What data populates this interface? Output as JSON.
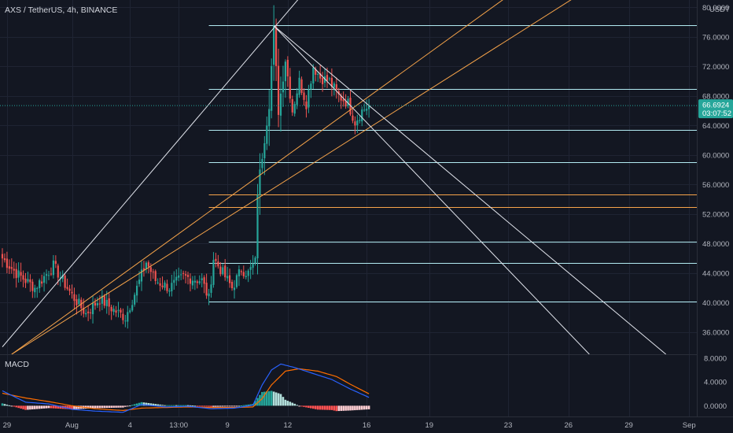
{
  "chart_data": {
    "type": "candlestick",
    "title": "AXS / TetherUS, 4h, BINANCE",
    "currency_label": "USDT",
    "price_axis": {
      "ylim": [
        33.0,
        81.0
      ],
      "ticks": [
        "80.0000",
        "76.0000",
        "72.0000",
        "68.0000",
        "64.0000",
        "60.0000",
        "56.0000",
        "52.0000",
        "48.0000",
        "44.0000",
        "40.0000",
        "36.0000"
      ]
    },
    "last_price": {
      "value": 66.6924,
      "label": "66.6924",
      "countdown": "03:07:52",
      "color": "#26a69a"
    },
    "time_axis": {
      "candle_count": 159,
      "ticks": [
        {
          "index": 2,
          "label": "29"
        },
        {
          "index": 30,
          "label": "Aug"
        },
        {
          "index": 55,
          "label": "4"
        },
        {
          "index": 76,
          "label": "13:00"
        },
        {
          "index": 97,
          "label": "9"
        },
        {
          "index": 123,
          "label": "12"
        },
        {
          "index": 157,
          "label": "16"
        },
        {
          "index": 184,
          "label": "19"
        },
        {
          "index": 218,
          "label": "23"
        },
        {
          "index": 244,
          "label": "26"
        },
        {
          "index": 270,
          "label": "29"
        },
        {
          "index": 296,
          "label": "Sep"
        }
      ]
    },
    "anchors": [
      {
        "i": 0,
        "p": 46.0
      },
      {
        "i": 6,
        "p": 44.0
      },
      {
        "i": 14,
        "p": 42.0
      },
      {
        "i": 22,
        "p": 45.0
      },
      {
        "i": 30,
        "p": 41.0
      },
      {
        "i": 36,
        "p": 38.5
      },
      {
        "i": 42,
        "p": 40.5
      },
      {
        "i": 48,
        "p": 39.0
      },
      {
        "i": 53,
        "p": 38.0
      },
      {
        "i": 58,
        "p": 42.0
      },
      {
        "i": 62,
        "p": 45.5
      },
      {
        "i": 66,
        "p": 43.0
      },
      {
        "i": 72,
        "p": 42.0
      },
      {
        "i": 78,
        "p": 43.5
      },
      {
        "i": 86,
        "p": 43.0
      },
      {
        "i": 89,
        "p": 40.5
      },
      {
        "i": 91,
        "p": 46.0
      },
      {
        "i": 95,
        "p": 44.0
      },
      {
        "i": 99,
        "p": 42.0
      },
      {
        "i": 103,
        "p": 44.5
      },
      {
        "i": 106,
        "p": 44.0
      },
      {
        "i": 109,
        "p": 45.5
      },
      {
        "i": 110,
        "p": 55.0
      },
      {
        "i": 112,
        "p": 60.0
      },
      {
        "i": 115,
        "p": 67.0
      },
      {
        "i": 117,
        "p": 77.0
      },
      {
        "i": 119,
        "p": 66.0
      },
      {
        "i": 122,
        "p": 73.0
      },
      {
        "i": 125,
        "p": 66.0
      },
      {
        "i": 128,
        "p": 70.0
      },
      {
        "i": 131,
        "p": 67.0
      },
      {
        "i": 134,
        "p": 72.0
      },
      {
        "i": 137,
        "p": 70.5
      },
      {
        "i": 141,
        "p": 70.0
      },
      {
        "i": 145,
        "p": 68.0
      },
      {
        "i": 149,
        "p": 67.0
      },
      {
        "i": 152,
        "p": 64.5
      },
      {
        "i": 155,
        "p": 66.0
      },
      {
        "i": 158,
        "p": 66.7
      }
    ],
    "horizontal_levels": [
      {
        "price": 77.6,
        "color": "#b2ebf2",
        "from_index": 89
      },
      {
        "price": 69.0,
        "color": "#b2ebf2",
        "from_index": 89
      },
      {
        "price": 63.4,
        "color": "#b2ebf2",
        "from_index": 89
      },
      {
        "price": 59.0,
        "color": "#b2ebf2",
        "from_index": 89
      },
      {
        "price": 54.6,
        "color": "#f7a44a",
        "from_index": 89
      },
      {
        "price": 53.0,
        "color": "#f7a44a",
        "from_index": 89
      },
      {
        "price": 48.2,
        "color": "#b2ebf2",
        "from_index": 89
      },
      {
        "price": 45.4,
        "color": "#b2ebf2",
        "from_index": 89
      },
      {
        "price": 40.1,
        "color": "#b2ebf2",
        "from_index": 89
      }
    ],
    "trend_lines": [
      {
        "x1": 0,
        "y1": 34.0,
        "x2": 130,
        "y2": 82.0,
        "color": "#e0e3eb"
      },
      {
        "x1": 4,
        "y1": 33.0,
        "x2": 220,
        "y2": 82.0,
        "color": "#f7a44a"
      },
      {
        "x1": 4,
        "y1": 33.0,
        "x2": 250,
        "y2": 82.0,
        "color": "#f7a44a"
      },
      {
        "x1": 117,
        "y1": 77.5,
        "x2": 253,
        "y2": 33.0,
        "color": "#e0e3eb"
      },
      {
        "x1": 117,
        "y1": 77.5,
        "x2": 286,
        "y2": 33.0,
        "color": "#e0e3eb"
      }
    ],
    "macd": {
      "label": "MACD",
      "ylim": [
        -1.8,
        8.5
      ],
      "ticks": [
        "8.0000",
        "4.0000",
        "0.0000"
      ],
      "line_color": "#2962ff",
      "signal_color": "#ff6d00",
      "line_points": [
        {
          "i": 0,
          "v": 2.5
        },
        {
          "i": 10,
          "v": 0.6
        },
        {
          "i": 20,
          "v": 0.3
        },
        {
          "i": 30,
          "v": -0.6
        },
        {
          "i": 40,
          "v": -0.9
        },
        {
          "i": 52,
          "v": -1.1
        },
        {
          "i": 60,
          "v": 0.2
        },
        {
          "i": 70,
          "v": -0.2
        },
        {
          "i": 80,
          "v": -0.1
        },
        {
          "i": 90,
          "v": -0.5
        },
        {
          "i": 100,
          "v": -0.4
        },
        {
          "i": 108,
          "v": 0.1
        },
        {
          "i": 112,
          "v": 3.5
        },
        {
          "i": 116,
          "v": 6.0
        },
        {
          "i": 120,
          "v": 7.0
        },
        {
          "i": 126,
          "v": 6.4
        },
        {
          "i": 134,
          "v": 5.4
        },
        {
          "i": 142,
          "v": 4.4
        },
        {
          "i": 150,
          "v": 2.8
        },
        {
          "i": 158,
          "v": 1.4
        }
      ],
      "signal_points": [
        {
          "i": 0,
          "v": 2.1
        },
        {
          "i": 10,
          "v": 1.3
        },
        {
          "i": 20,
          "v": 0.7
        },
        {
          "i": 30,
          "v": 0.0
        },
        {
          "i": 40,
          "v": -0.5
        },
        {
          "i": 52,
          "v": -0.8
        },
        {
          "i": 60,
          "v": -0.4
        },
        {
          "i": 70,
          "v": -0.3
        },
        {
          "i": 80,
          "v": -0.2
        },
        {
          "i": 90,
          "v": -0.3
        },
        {
          "i": 100,
          "v": -0.3
        },
        {
          "i": 108,
          "v": -0.2
        },
        {
          "i": 112,
          "v": 1.2
        },
        {
          "i": 116,
          "v": 3.5
        },
        {
          "i": 122,
          "v": 5.8
        },
        {
          "i": 128,
          "v": 6.2
        },
        {
          "i": 136,
          "v": 5.8
        },
        {
          "i": 144,
          "v": 4.9
        },
        {
          "i": 150,
          "v": 3.6
        },
        {
          "i": 158,
          "v": 2.0
        }
      ]
    },
    "colors": {
      "background": "#131722",
      "up": "#26a69a",
      "down": "#ef5350",
      "grid": "#1f2433",
      "text": "#b2b5be",
      "hist_pos_strong": "#26a69a",
      "hist_pos_weak": "#b2dfdb",
      "hist_neg_strong": "#ff5252",
      "hist_neg_weak": "#ffcdd2"
    }
  }
}
